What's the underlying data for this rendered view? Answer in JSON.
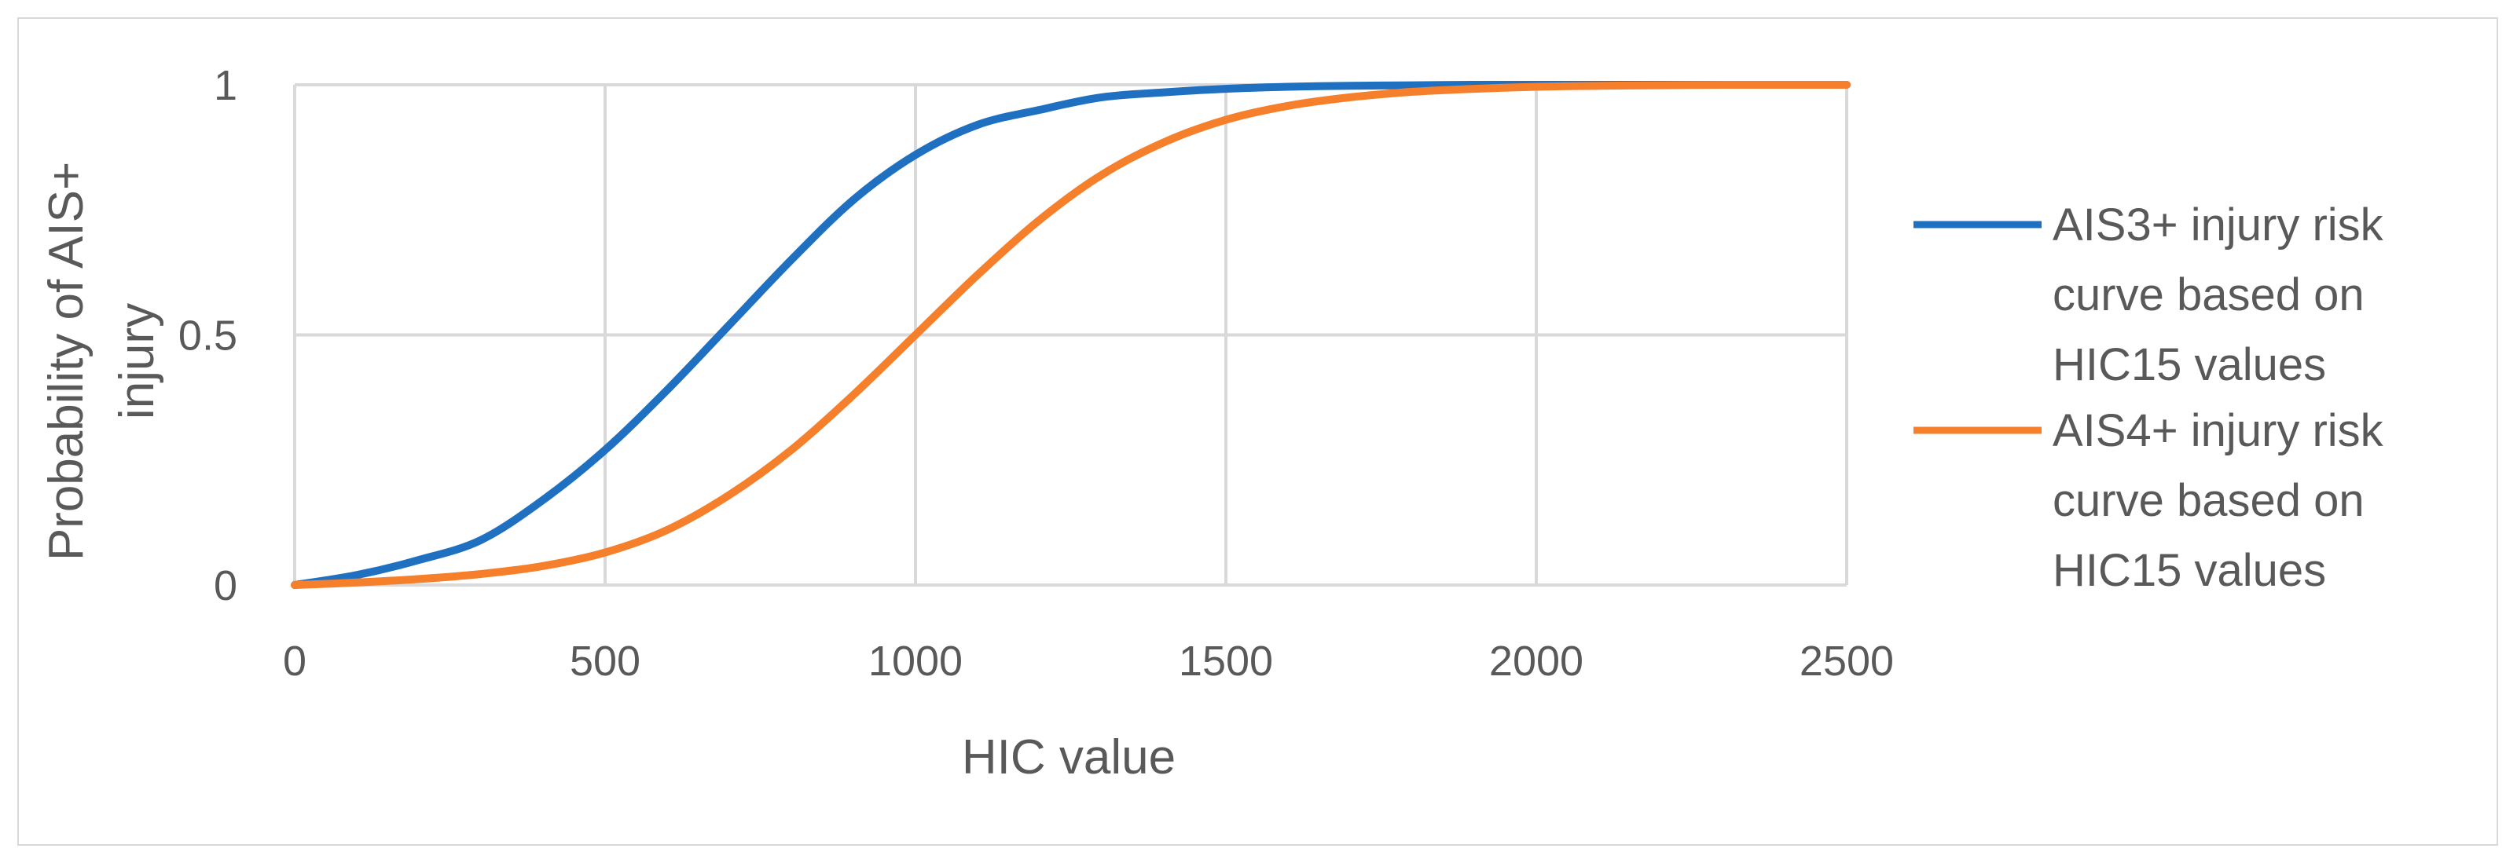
{
  "chart_data": {
    "type": "line",
    "title": "",
    "xlabel": "HIC value",
    "ylabel_lines": [
      "Probability of AIS+",
      "injury"
    ],
    "xlim": [
      0,
      2500
    ],
    "ylim": [
      0,
      1
    ],
    "x_ticks": [
      0,
      500,
      1000,
      1500,
      2000,
      2500
    ],
    "x_tick_labels": [
      "0",
      "500",
      "1000",
      "1500",
      "2000",
      "2500"
    ],
    "y_ticks": [
      0,
      0.5,
      1
    ],
    "y_tick_labels": [
      "0",
      "0.5",
      "1"
    ],
    "grid": true,
    "legend_position": "right",
    "series": [
      {
        "name_lines": [
          "AIS3+ injury risk",
          "curve based on",
          "HIC15 values"
        ],
        "color": "#1f70c1",
        "x": [
          0,
          100,
          200,
          300,
          400,
          500,
          600,
          700,
          800,
          900,
          1000,
          1100,
          1200,
          1300,
          1400,
          1500,
          1600,
          1700,
          1800,
          1900,
          2000,
          2100,
          2200,
          2300,
          2400,
          2500
        ],
        "y": [
          0.0,
          0.02,
          0.05,
          0.09,
          0.17,
          0.27,
          0.39,
          0.52,
          0.65,
          0.77,
          0.86,
          0.92,
          0.95,
          0.975,
          0.985,
          0.992,
          0.996,
          0.998,
          0.999,
          1.0,
          1.0,
          1.0,
          1.0,
          1.0,
          1.0,
          1.0
        ]
      },
      {
        "name_lines": [
          "AIS4+ injury risk",
          "curve based on",
          "HIC15 values"
        ],
        "color": "#f57f2a",
        "x": [
          0,
          100,
          200,
          300,
          400,
          500,
          600,
          700,
          800,
          900,
          1000,
          1100,
          1200,
          1300,
          1400,
          1500,
          1600,
          1700,
          1800,
          1900,
          2000,
          2100,
          2200,
          2300,
          2400,
          2500
        ],
        "y": [
          0.0,
          0.005,
          0.012,
          0.022,
          0.038,
          0.065,
          0.11,
          0.18,
          0.27,
          0.38,
          0.5,
          0.62,
          0.73,
          0.82,
          0.885,
          0.93,
          0.958,
          0.975,
          0.986,
          0.992,
          0.996,
          0.998,
          0.999,
          1.0,
          1.0,
          1.0
        ]
      }
    ]
  }
}
